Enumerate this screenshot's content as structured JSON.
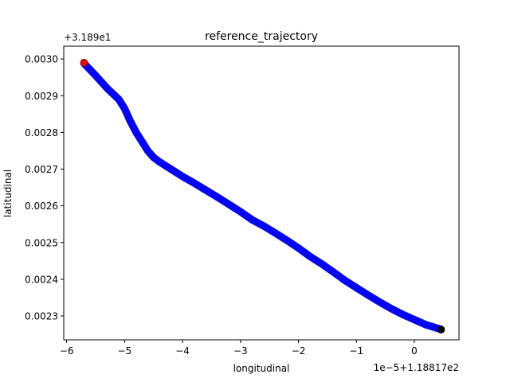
{
  "chart_data": {
    "type": "scatter",
    "title": "reference_trajectory",
    "xlabel": "longitudinal",
    "ylabel": "latitudinal",
    "x_offset_label": "1e−5+1.18817e2",
    "y_offset_label": "+3.189e1",
    "xlim": [
      -6.05,
      0.77
    ],
    "ylim": [
      0.002235,
      0.003035
    ],
    "x_ticks": [
      -6,
      -5,
      -4,
      -3,
      -2,
      -1,
      0
    ],
    "x_tick_labels": [
      "−6",
      "−5",
      "−4",
      "−3",
      "−2",
      "−1",
      "0"
    ],
    "y_ticks": [
      0.0023,
      0.0024,
      0.0025,
      0.0026,
      0.0027,
      0.0028,
      0.0029,
      0.003
    ],
    "y_tick_labels": [
      "0.0023",
      "0.0024",
      "0.0025",
      "0.0026",
      "0.0027",
      "0.0028",
      "0.0029",
      "0.0030"
    ],
    "grid": false,
    "series": [
      {
        "color": "#0000ff",
        "x": [
          -5.7,
          -5.5,
          -5.3,
          -5.1,
          -5.0,
          -4.9,
          -4.8,
          -4.7,
          -4.6,
          -4.5,
          -4.4,
          -4.2,
          -4.0,
          -3.8,
          -3.6,
          -3.4,
          -3.2,
          -3.0,
          -2.8,
          -2.6,
          -2.4,
          -2.2,
          -2.0,
          -1.8,
          -1.6,
          -1.4,
          -1.2,
          -1.0,
          -0.8,
          -0.6,
          -0.4,
          -0.2,
          0.0,
          0.2,
          0.45
        ],
        "y": [
          0.002988,
          0.002955,
          0.00292,
          0.00289,
          0.002865,
          0.00283,
          0.0028,
          0.002775,
          0.00275,
          0.002732,
          0.00272,
          0.0027,
          0.00268,
          0.002662,
          0.002643,
          0.002624,
          0.002604,
          0.002584,
          0.002562,
          0.002545,
          0.002526,
          0.002506,
          0.002485,
          0.002462,
          0.002442,
          0.00242,
          0.002397,
          0.002377,
          0.002357,
          0.002338,
          0.00232,
          0.002304,
          0.00229,
          0.002276,
          0.002264
        ]
      }
    ],
    "start_marker": {
      "x": -5.7,
      "y": 0.00299,
      "color": "#ff0000"
    },
    "end_marker": {
      "x": 0.46,
      "y": 0.002263,
      "color": "#000000"
    }
  }
}
